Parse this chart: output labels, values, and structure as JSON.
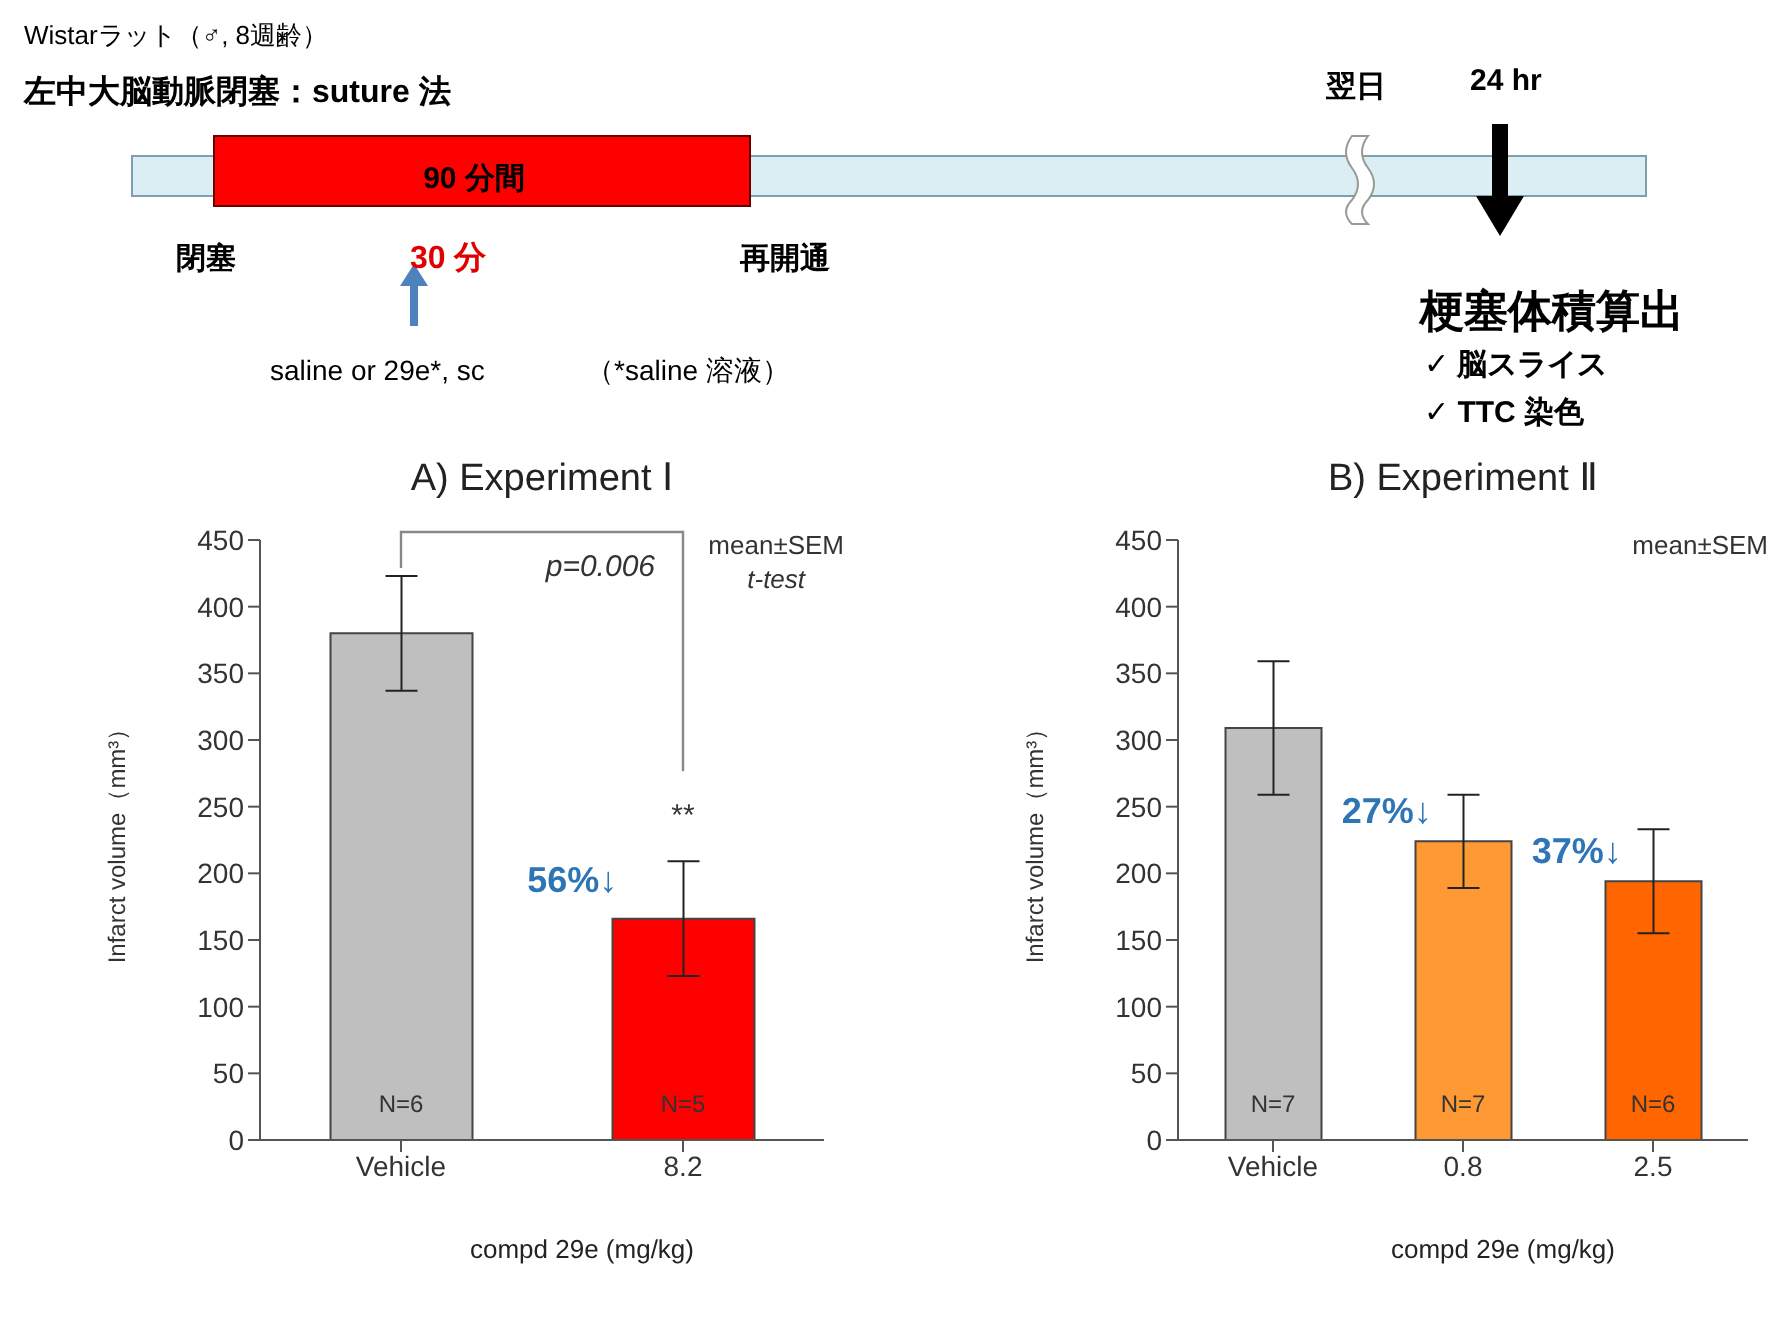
{
  "chart_data": [
    {
      "type": "other",
      "annotations": [
        "Wistarラット（♂, 8週齢）",
        "左中大脳動脈閉塞：suture 法",
        "90 分間",
        "閉塞",
        "30 分",
        "再開通",
        "saline or 29e*, sc",
        "（*saline 溶液）",
        "翌日",
        "24 hr",
        "梗塞体積算出",
        "✓  脳スライス",
        "✓  TTC 染色"
      ]
    },
    {
      "type": "bar",
      "title": "A) Experiment Ⅰ",
      "xlabel": "compd 29e (mg/kg)",
      "ylabel": "Infarct volume（mm³）",
      "categories": [
        "Vehicle",
        "8.2"
      ],
      "values": [
        380,
        166
      ],
      "errors": [
        43,
        43
      ],
      "colors": [
        "#bfbfbf",
        "#ff0000"
      ],
      "ylim": [
        0,
        450
      ],
      "yticks": [
        0,
        50,
        100,
        150,
        200,
        250,
        300,
        350,
        400,
        450
      ],
      "annotations": [
        "mean±SEM",
        "t-test",
        "p=0.006",
        "**",
        "N=6",
        "N=5",
        {
          "text": "56%↓",
          "x": "8.2",
          "y": 186
        }
      ]
    },
    {
      "type": "bar",
      "title": "B) Experiment Ⅱ",
      "xlabel": "compd 29e (mg/kg)",
      "ylabel": "Infarct volume（mm³）",
      "categories": [
        "Vehicle",
        "0.8",
        "2.5"
      ],
      "values": [
        309,
        224,
        194
      ],
      "errors": [
        50,
        35,
        39
      ],
      "colors": [
        "#bfbfbf",
        "#ff9933",
        "#ff6600"
      ],
      "ylim": [
        0,
        450
      ],
      "yticks": [
        0,
        50,
        100,
        150,
        200,
        250,
        300,
        350,
        400,
        450
      ],
      "annotations": [
        "mean±SEM",
        "N=7",
        "N=7",
        "N=6",
        {
          "text": "27%↓",
          "x": "0.8",
          "y": 238
        },
        {
          "text": "37%↓",
          "x": "2.5",
          "y": 208
        }
      ]
    }
  ]
}
